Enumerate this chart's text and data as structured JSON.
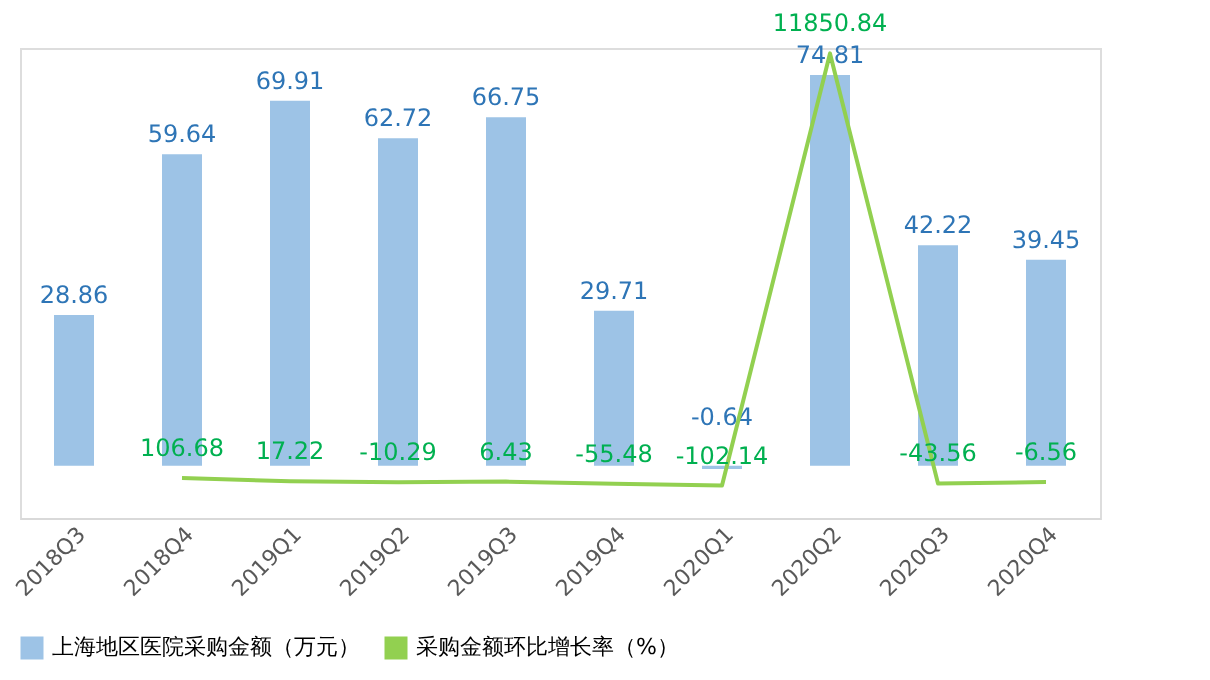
{
  "chart_data": {
    "type": "bar",
    "categories": [
      "2018Q3",
      "2018Q4",
      "2019Q1",
      "2019Q2",
      "2019Q3",
      "2019Q4",
      "2020Q1",
      "2020Q2",
      "2020Q3",
      "2020Q4"
    ],
    "series": [
      {
        "name": "上海地区医院采购金额（万元）",
        "color": "#9dc3e6",
        "values": [
          28.86,
          59.64,
          69.91,
          62.72,
          66.75,
          29.71,
          -0.64,
          74.81,
          42.22,
          39.45
        ]
      },
      {
        "name": "采购金额环比增长率（%）",
        "type": "line",
        "axis": "y2",
        "line_style": "solid",
        "color": "#92d050",
        "values": [
          null,
          106.68,
          17.22,
          -10.29,
          6.43,
          -55.48,
          -102.14,
          11850.84,
          -43.56,
          -6.56
        ]
      }
    ],
    "data_labels": true,
    "tick_labels": "x",
    "legend": "bottom",
    "grid": false,
    "marker": "none"
  }
}
